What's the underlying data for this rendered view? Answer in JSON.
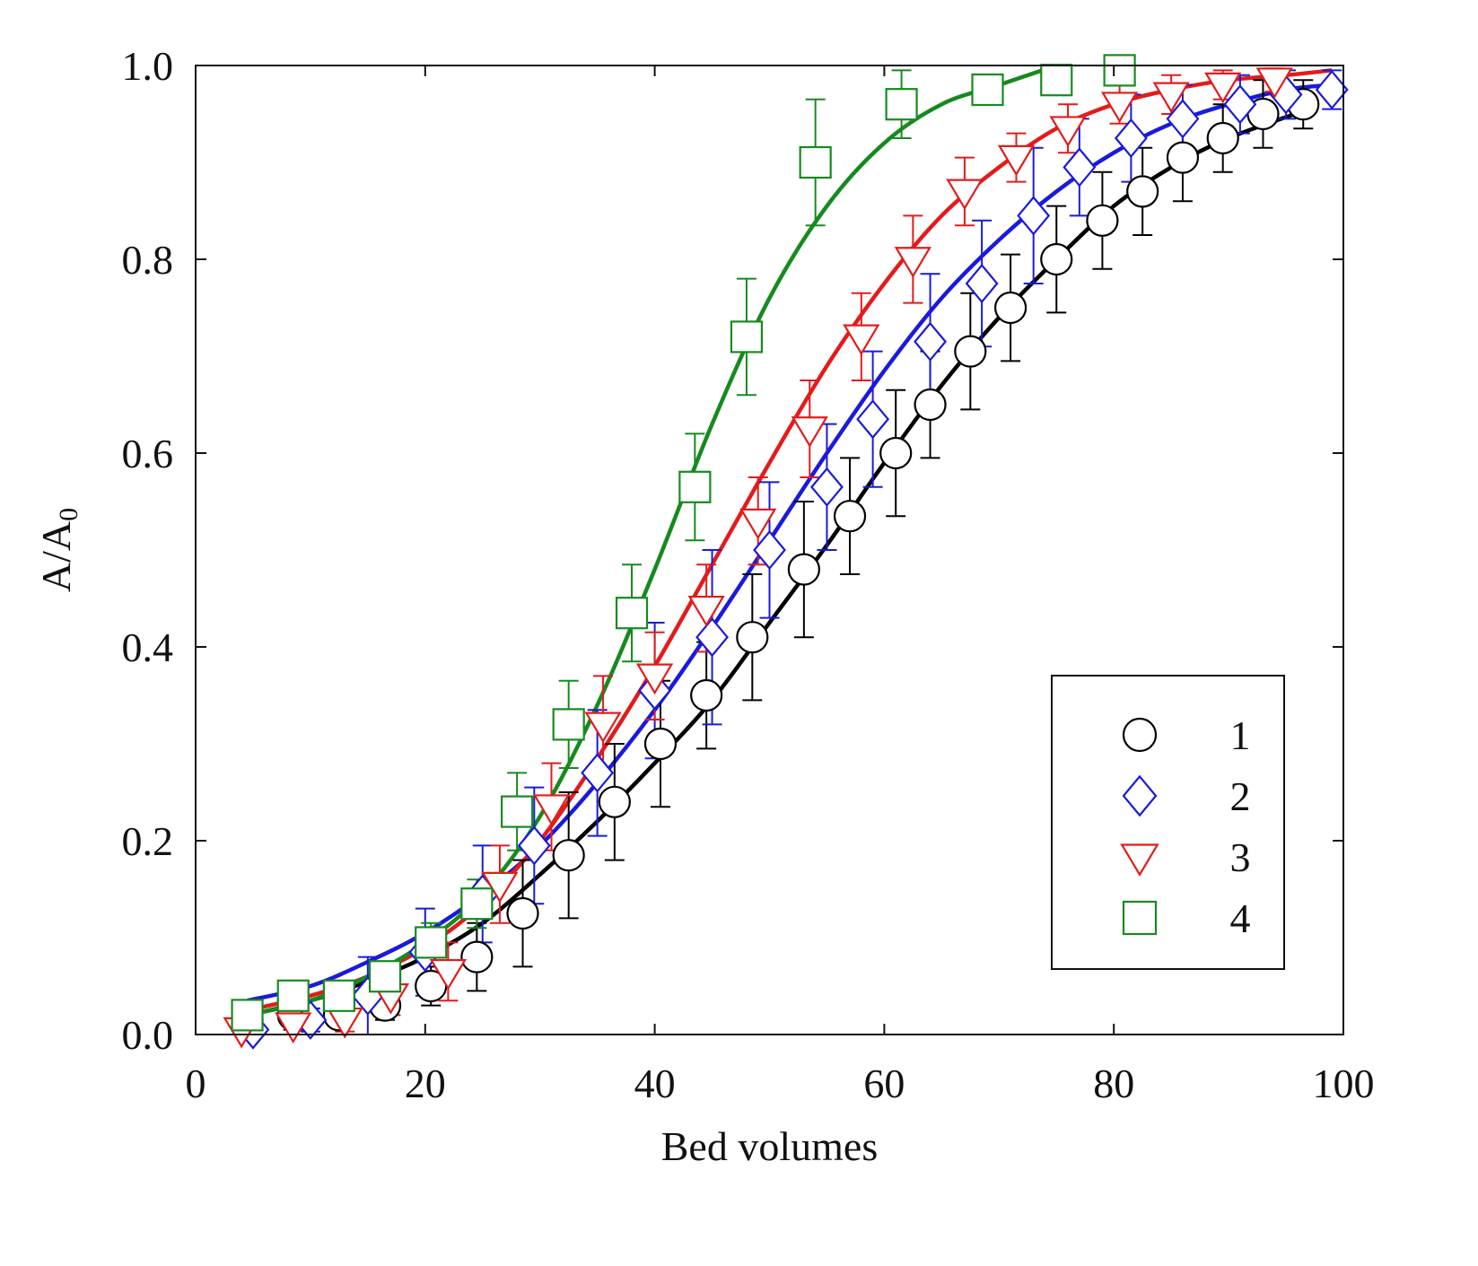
{
  "chart_data": {
    "type": "scatter",
    "xlabel": "Bed volumes",
    "ylabel": "A/A",
    "ylabel_subscript": "0",
    "xlim": [
      0,
      100
    ],
    "ylim": [
      0,
      1.0
    ],
    "xticks": [
      0,
      20,
      40,
      60,
      80,
      100
    ],
    "yticks": [
      0.0,
      0.2,
      0.4,
      0.6,
      0.8,
      1.0
    ],
    "xtick_labels": [
      "0",
      "20",
      "40",
      "60",
      "80",
      "100"
    ],
    "ytick_labels": [
      "0.0",
      "0.2",
      "0.4",
      "0.6",
      "0.8",
      "1.0"
    ],
    "legend_position": "bottom-right",
    "grid": false,
    "series": [
      {
        "name": "1",
        "color": "#000000",
        "marker": "circle",
        "points": [
          {
            "x": 4.5,
            "y": 0.015,
            "err": 0.01
          },
          {
            "x": 8.5,
            "y": 0.02,
            "err": 0.015
          },
          {
            "x": 12.5,
            "y": 0.02,
            "err": 0.012
          },
          {
            "x": 16.5,
            "y": 0.03,
            "err": 0.015
          },
          {
            "x": 20.5,
            "y": 0.05,
            "err": 0.02
          },
          {
            "x": 24.5,
            "y": 0.08,
            "err": 0.035
          },
          {
            "x": 28.5,
            "y": 0.125,
            "err": 0.055
          },
          {
            "x": 32.5,
            "y": 0.185,
            "err": 0.065
          },
          {
            "x": 36.5,
            "y": 0.24,
            "err": 0.06
          },
          {
            "x": 40.5,
            "y": 0.3,
            "err": 0.065
          },
          {
            "x": 44.5,
            "y": 0.35,
            "err": 0.055
          },
          {
            "x": 48.5,
            "y": 0.41,
            "err": 0.065
          },
          {
            "x": 53,
            "y": 0.48,
            "err": 0.07
          },
          {
            "x": 57,
            "y": 0.535,
            "err": 0.06
          },
          {
            "x": 61,
            "y": 0.6,
            "err": 0.065
          },
          {
            "x": 64,
            "y": 0.65,
            "err": 0.055
          },
          {
            "x": 67.5,
            "y": 0.705,
            "err": 0.06
          },
          {
            "x": 71,
            "y": 0.75,
            "err": 0.055
          },
          {
            "x": 75,
            "y": 0.8,
            "err": 0.055
          },
          {
            "x": 79,
            "y": 0.84,
            "err": 0.05
          },
          {
            "x": 82.5,
            "y": 0.87,
            "err": 0.045
          },
          {
            "x": 86,
            "y": 0.905,
            "err": 0.045
          },
          {
            "x": 89.5,
            "y": 0.925,
            "err": 0.035
          },
          {
            "x": 93,
            "y": 0.95,
            "err": 0.035
          },
          {
            "x": 96.5,
            "y": 0.96,
            "err": 0.025
          }
        ],
        "fit": [
          [
            4.5,
            0.02
          ],
          [
            10,
            0.035
          ],
          [
            15,
            0.055
          ],
          [
            20,
            0.08
          ],
          [
            25,
            0.115
          ],
          [
            30,
            0.165
          ],
          [
            35,
            0.22
          ],
          [
            40,
            0.28
          ],
          [
            45,
            0.345
          ],
          [
            50,
            0.425
          ],
          [
            55,
            0.505
          ],
          [
            60,
            0.59
          ],
          [
            65,
            0.67
          ],
          [
            70,
            0.74
          ],
          [
            75,
            0.8
          ],
          [
            80,
            0.855
          ],
          [
            85,
            0.895
          ],
          [
            90,
            0.925
          ],
          [
            97,
            0.955
          ]
        ]
      },
      {
        "name": "2",
        "color": "#1a1adb",
        "marker": "diamond",
        "points": [
          {
            "x": 5,
            "y": 0.005,
            "err": 0.01
          },
          {
            "x": 10,
            "y": 0.015,
            "err": 0.012
          },
          {
            "x": 15,
            "y": 0.04,
            "err": 0.04
          },
          {
            "x": 20,
            "y": 0.085,
            "err": 0.045
          },
          {
            "x": 25,
            "y": 0.145,
            "err": 0.05
          },
          {
            "x": 29.5,
            "y": 0.195,
            "err": 0.06
          },
          {
            "x": 35,
            "y": 0.27,
            "err": 0.065
          },
          {
            "x": 40,
            "y": 0.355,
            "err": 0.07
          },
          {
            "x": 45,
            "y": 0.41,
            "err": 0.09
          },
          {
            "x": 50,
            "y": 0.5,
            "err": 0.07
          },
          {
            "x": 55,
            "y": 0.565,
            "err": 0.065
          },
          {
            "x": 59,
            "y": 0.635,
            "err": 0.07
          },
          {
            "x": 64,
            "y": 0.715,
            "err": 0.07
          },
          {
            "x": 68.5,
            "y": 0.775,
            "err": 0.065
          },
          {
            "x": 73,
            "y": 0.845,
            "err": 0.07
          },
          {
            "x": 77,
            "y": 0.895,
            "err": 0.05
          },
          {
            "x": 81.5,
            "y": 0.925,
            "err": 0.045
          },
          {
            "x": 86,
            "y": 0.945,
            "err": 0.035
          },
          {
            "x": 91,
            "y": 0.96,
            "err": 0.03
          },
          {
            "x": 95,
            "y": 0.97,
            "err": 0.025
          },
          {
            "x": 99,
            "y": 0.975,
            "err": 0.02
          }
        ],
        "fit": [
          [
            4.5,
            0.035
          ],
          [
            10,
            0.05
          ],
          [
            15,
            0.075
          ],
          [
            20,
            0.105
          ],
          [
            25,
            0.145
          ],
          [
            30,
            0.195
          ],
          [
            35,
            0.26
          ],
          [
            40,
            0.335
          ],
          [
            45,
            0.42
          ],
          [
            50,
            0.51
          ],
          [
            55,
            0.6
          ],
          [
            60,
            0.685
          ],
          [
            65,
            0.76
          ],
          [
            70,
            0.82
          ],
          [
            75,
            0.87
          ],
          [
            80,
            0.91
          ],
          [
            85,
            0.94
          ],
          [
            90,
            0.96
          ],
          [
            95,
            0.975
          ],
          [
            99,
            0.98
          ]
        ]
      },
      {
        "name": "3",
        "color": "#e31b1b",
        "marker": "triangle-down",
        "points": [
          {
            "x": 4,
            "y": 0.005,
            "err": 0.01
          },
          {
            "x": 8.5,
            "y": 0.01,
            "err": 0.012
          },
          {
            "x": 13,
            "y": 0.015,
            "err": 0.012
          },
          {
            "x": 17,
            "y": 0.04,
            "err": 0.02
          },
          {
            "x": 22,
            "y": 0.065,
            "err": 0.03
          },
          {
            "x": 26.5,
            "y": 0.155,
            "err": 0.04
          },
          {
            "x": 31,
            "y": 0.235,
            "err": 0.045
          },
          {
            "x": 35.5,
            "y": 0.32,
            "err": 0.05
          },
          {
            "x": 40,
            "y": 0.37,
            "err": 0.045
          },
          {
            "x": 44.5,
            "y": 0.44,
            "err": 0.045
          },
          {
            "x": 49,
            "y": 0.53,
            "err": 0.045
          },
          {
            "x": 53.5,
            "y": 0.625,
            "err": 0.05
          },
          {
            "x": 58,
            "y": 0.72,
            "err": 0.045
          },
          {
            "x": 62.5,
            "y": 0.8,
            "err": 0.045
          },
          {
            "x": 67,
            "y": 0.87,
            "err": 0.035
          },
          {
            "x": 71.5,
            "y": 0.905,
            "err": 0.025
          },
          {
            "x": 76,
            "y": 0.935,
            "err": 0.025
          },
          {
            "x": 80.5,
            "y": 0.96,
            "err": 0.02
          },
          {
            "x": 85,
            "y": 0.97,
            "err": 0.02
          },
          {
            "x": 89.5,
            "y": 0.98,
            "err": 0.015
          },
          {
            "x": 94,
            "y": 0.985,
            "err": 0.012
          }
        ],
        "fit": [
          [
            4.5,
            0.025
          ],
          [
            10,
            0.04
          ],
          [
            15,
            0.06
          ],
          [
            20,
            0.09
          ],
          [
            25,
            0.135
          ],
          [
            30,
            0.2
          ],
          [
            35,
            0.285
          ],
          [
            40,
            0.38
          ],
          [
            45,
            0.485
          ],
          [
            50,
            0.59
          ],
          [
            55,
            0.69
          ],
          [
            60,
            0.775
          ],
          [
            65,
            0.845
          ],
          [
            70,
            0.895
          ],
          [
            75,
            0.935
          ],
          [
            80,
            0.96
          ],
          [
            85,
            0.975
          ],
          [
            90,
            0.985
          ],
          [
            95,
            0.99
          ],
          [
            99,
            0.995
          ]
        ]
      },
      {
        "name": "4",
        "color": "#168a1f",
        "marker": "square",
        "points": [
          {
            "x": 4.5,
            "y": 0.02,
            "err": 0.015
          },
          {
            "x": 8.5,
            "y": 0.04,
            "err": 0.012
          },
          {
            "x": 12.5,
            "y": 0.04,
            "err": 0.01
          },
          {
            "x": 16.5,
            "y": 0.06,
            "err": 0.01
          },
          {
            "x": 20.5,
            "y": 0.095,
            "err": 0.02
          },
          {
            "x": 24.5,
            "y": 0.135,
            "err": 0.025
          },
          {
            "x": 28,
            "y": 0.23,
            "err": 0.04
          },
          {
            "x": 32.5,
            "y": 0.32,
            "err": 0.045
          },
          {
            "x": 38,
            "y": 0.435,
            "err": 0.05
          },
          {
            "x": 43.5,
            "y": 0.565,
            "err": 0.055
          },
          {
            "x": 48,
            "y": 0.72,
            "err": 0.06
          },
          {
            "x": 54,
            "y": 0.9,
            "err": 0.065
          },
          {
            "x": 61.5,
            "y": 0.96,
            "err": 0.035
          },
          {
            "x": 69,
            "y": 0.975,
            "err": 0.015
          },
          {
            "x": 75,
            "y": 0.985,
            "err": 0.01
          },
          {
            "x": 80.5,
            "y": 0.995,
            "err": 0.006
          }
        ],
        "fit": [
          [
            4.5,
            0.02
          ],
          [
            10,
            0.035
          ],
          [
            15,
            0.06
          ],
          [
            20,
            0.095
          ],
          [
            25,
            0.145
          ],
          [
            30,
            0.225
          ],
          [
            35,
            0.34
          ],
          [
            40,
            0.48
          ],
          [
            45,
            0.63
          ],
          [
            50,
            0.76
          ],
          [
            55,
            0.855
          ],
          [
            60,
            0.92
          ],
          [
            65,
            0.96
          ],
          [
            70,
            0.98
          ],
          [
            75,
            1.0
          ]
        ]
      }
    ]
  }
}
